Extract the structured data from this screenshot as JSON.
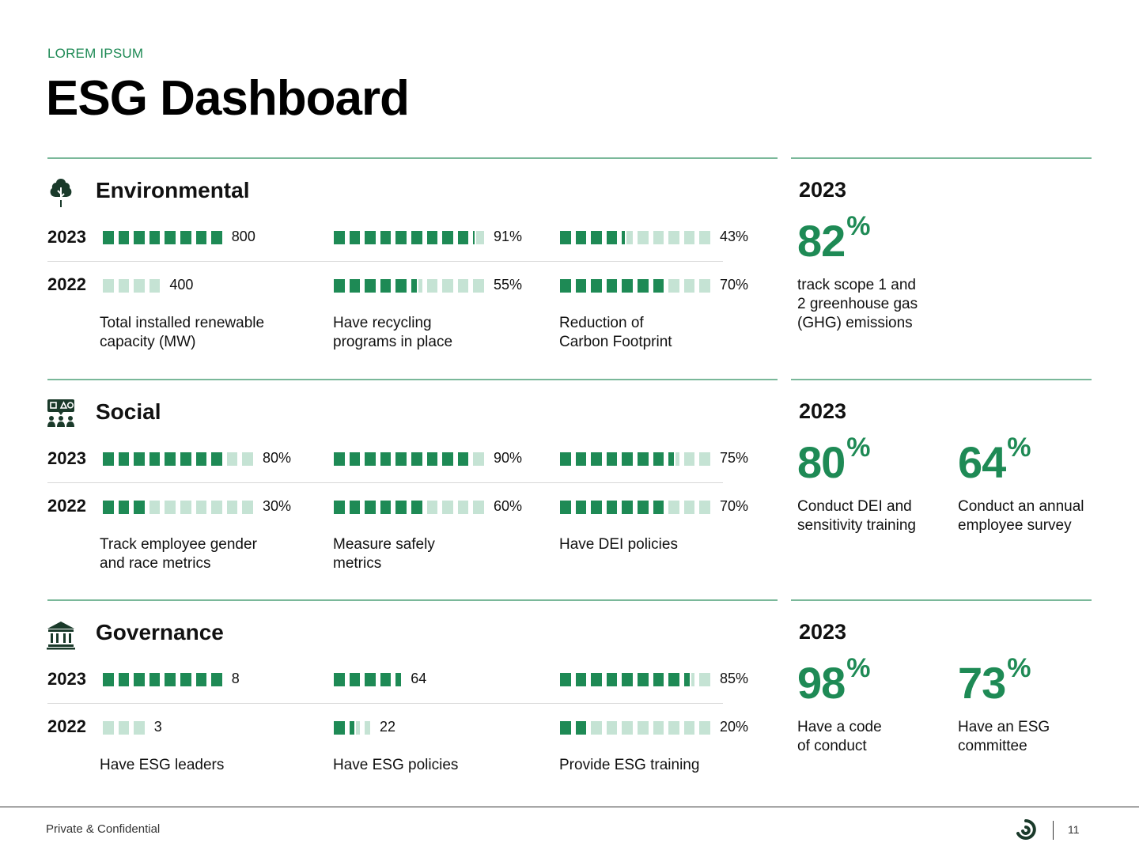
{
  "header": {
    "eyebrow": "LOREM IPSUM",
    "title": "ESG Dashboard"
  },
  "colors": {
    "accent": "#1e8a55",
    "bar_filled": "#1e8a55",
    "bar_empty": "#c5e3d4",
    "rule": "#7ab89a"
  },
  "sections": [
    {
      "key": "environmental",
      "title": "Environmental",
      "icon": "tree-icon",
      "years": [
        "2023",
        "2022"
      ],
      "metrics": [
        {
          "label": "Total installed renewable capacity (MW)",
          "lines": [
            "Total installed renewable",
            "capacity (MW)"
          ],
          "segments": 10,
          "values": [
            {
              "fill": 8,
              "text": "800",
              "total": 8
            },
            {
              "fill": 0,
              "text": "400",
              "total": 4
            }
          ]
        },
        {
          "label": "Have recycling programs in place",
          "lines": [
            "Have recycling",
            "programs in place"
          ],
          "segments": 10,
          "values": [
            {
              "fill": 9.1,
              "text": "91%",
              "total": 10
            },
            {
              "fill": 5.5,
              "text": "55%",
              "total": 10
            }
          ]
        },
        {
          "label": "Reduction of Carbon Footprint",
          "lines": [
            "Reduction of",
            "Carbon Footprint"
          ],
          "segments": 10,
          "values": [
            {
              "fill": 4.3,
              "text": "43%",
              "total": 10
            },
            {
              "fill": 7,
              "text": "70%",
              "total": 10
            }
          ]
        }
      ],
      "right": {
        "year": "2023",
        "stats": [
          {
            "value": "82",
            "unit": "%",
            "lines": [
              "track scope 1 and",
              "2 greenhouse gas",
              "(GHG) emissions"
            ]
          }
        ]
      }
    },
    {
      "key": "social",
      "title": "Social",
      "icon": "people-icon",
      "years": [
        "2023",
        "2022"
      ],
      "metrics": [
        {
          "label": "Track employee gender and race metrics",
          "lines": [
            "Track employee gender",
            "and race metrics"
          ],
          "segments": 10,
          "values": [
            {
              "fill": 8,
              "text": "80%",
              "total": 10
            },
            {
              "fill": 3,
              "text": "30%",
              "total": 10
            }
          ]
        },
        {
          "label": "Measure safely metrics",
          "lines": [
            "Measure safely",
            "metrics"
          ],
          "segments": 10,
          "values": [
            {
              "fill": 9,
              "text": "90%",
              "total": 10
            },
            {
              "fill": 6,
              "text": "60%",
              "total": 10
            }
          ]
        },
        {
          "label": "Have DEI policies",
          "lines": [
            "Have DEI policies"
          ],
          "segments": 10,
          "values": [
            {
              "fill": 7.5,
              "text": "75%",
              "total": 10
            },
            {
              "fill": 7,
              "text": "70%",
              "total": 10
            }
          ]
        }
      ],
      "right": {
        "year": "2023",
        "stats": [
          {
            "value": "80",
            "unit": "%",
            "lines": [
              "Conduct DEI and",
              "sensitivity training"
            ]
          },
          {
            "value": "64",
            "unit": "%",
            "lines": [
              "Conduct an annual",
              "employee survey"
            ]
          }
        ]
      }
    },
    {
      "key": "governance",
      "title": "Governance",
      "icon": "bank-icon",
      "years": [
        "2023",
        "2022"
      ],
      "metrics": [
        {
          "label": "Have ESG leaders",
          "lines": [
            "Have ESG leaders"
          ],
          "segments": 10,
          "values": [
            {
              "fill": 8,
              "text": "8",
              "total": 8
            },
            {
              "fill": 0,
              "text": "3",
              "total": 3
            }
          ]
        },
        {
          "label": "Have ESG policies",
          "lines": [
            "Have ESG policies"
          ],
          "segments": 10,
          "values": [
            {
              "fill": 4.5,
              "text": "64",
              "total": 4.5
            },
            {
              "fill": 1.5,
              "text": "22",
              "total": 2.5,
              "empty_from": 0
            }
          ]
        },
        {
          "label": "Provide ESG training",
          "lines": [
            "Provide ESG training"
          ],
          "segments": 10,
          "values": [
            {
              "fill": 8.5,
              "text": "85%",
              "total": 10
            },
            {
              "fill": 2,
              "text": "20%",
              "total": 10
            }
          ]
        }
      ],
      "right": {
        "year": "2023",
        "stats": [
          {
            "value": "98",
            "unit": "%",
            "lines": [
              "Have a code",
              "of conduct"
            ]
          },
          {
            "value": "73",
            "unit": "%",
            "lines": [
              "Have an ESG",
              "committee"
            ]
          }
        ]
      }
    }
  ],
  "footer": {
    "text": "Private & Confidential",
    "page": "11",
    "logo_icon": "brand-logo-icon"
  }
}
